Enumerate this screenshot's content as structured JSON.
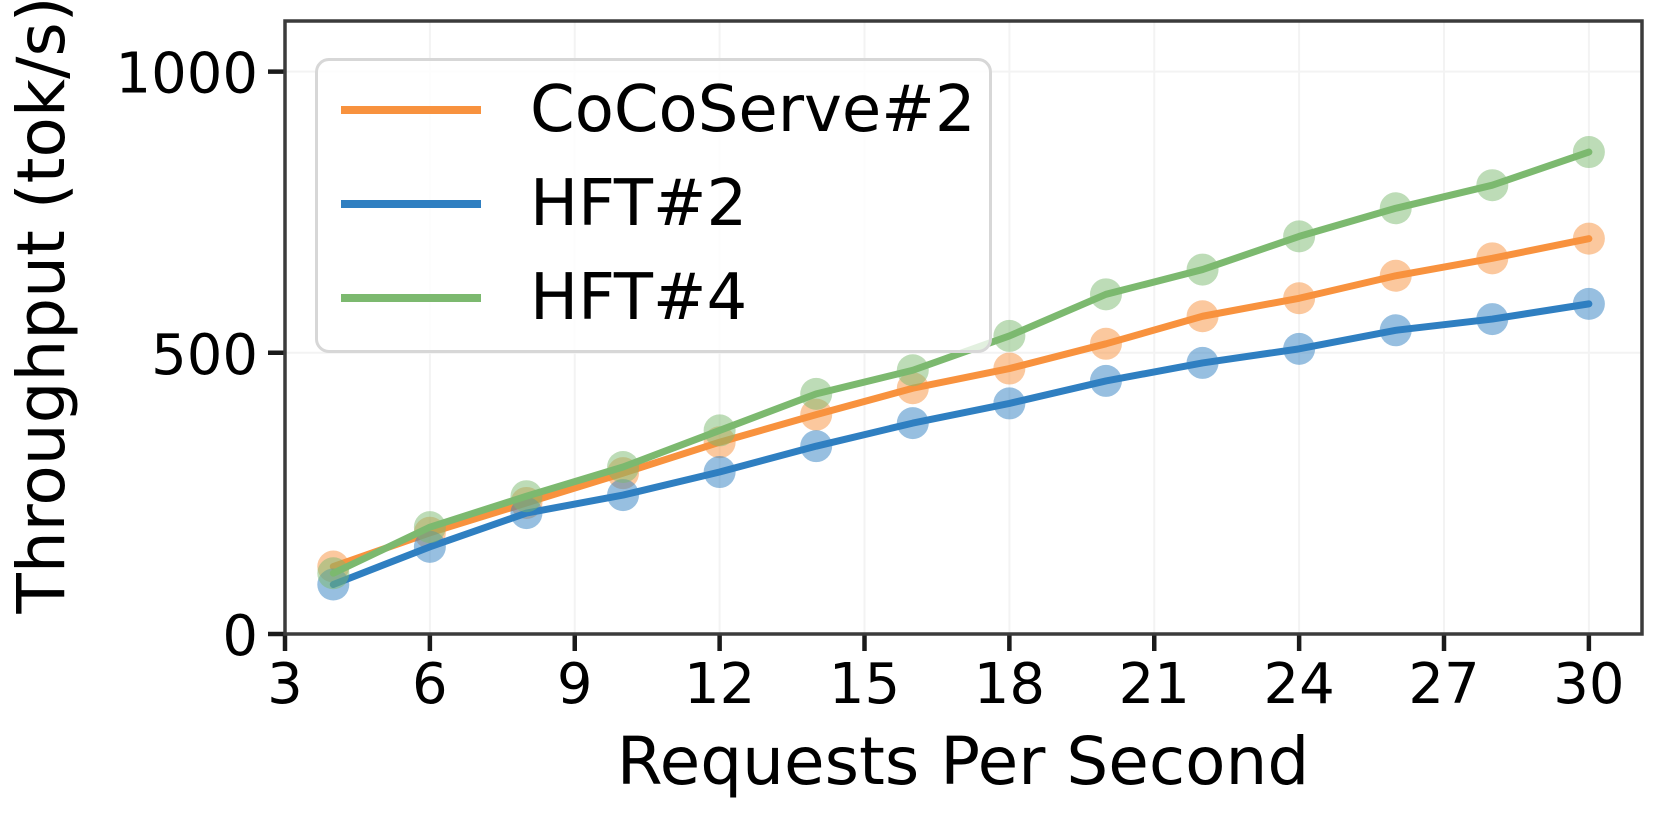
{
  "chart_data": {
    "type": "line",
    "title": "",
    "xlabel": "Requests Per Second",
    "ylabel": "Throughput (tok/s)",
    "x": [
      4,
      6,
      8,
      10,
      12,
      14,
      16,
      18,
      20,
      22,
      24,
      26,
      28,
      30
    ],
    "xticks": [
      3,
      6,
      9,
      12,
      15,
      18,
      21,
      24,
      27,
      30
    ],
    "yticks": [
      0,
      500,
      1000
    ],
    "xlim": [
      3,
      31.1
    ],
    "ylim": [
      0,
      1090
    ],
    "grid": true,
    "legend_position": "upper left",
    "series": [
      {
        "name": "CoCoServe#2",
        "color": "#f8923e",
        "marker": "circle",
        "values": [
          120,
          180,
          233,
          286,
          341,
          390,
          437,
          472,
          516,
          565,
          597,
          637,
          668,
          703
        ]
      },
      {
        "name": "HFT#2",
        "color": "#2f7fc1",
        "marker": "circle",
        "values": [
          88,
          155,
          215,
          247,
          288,
          334,
          375,
          410,
          450,
          482,
          507,
          540,
          560,
          587
        ]
      },
      {
        "name": "HFT#4",
        "color": "#7cb96f",
        "marker": "circle",
        "values": [
          108,
          190,
          245,
          297,
          362,
          427,
          469,
          530,
          604,
          648,
          707,
          757,
          798,
          857
        ]
      }
    ],
    "style": {
      "grid_color": "#f3f3f3",
      "spine_color": "#3b3b3b",
      "tick_color": "#1a1a1a",
      "text_color": "#000000",
      "marker_opacity": 0.5,
      "line_width": 7,
      "marker_radius": 16
    }
  }
}
